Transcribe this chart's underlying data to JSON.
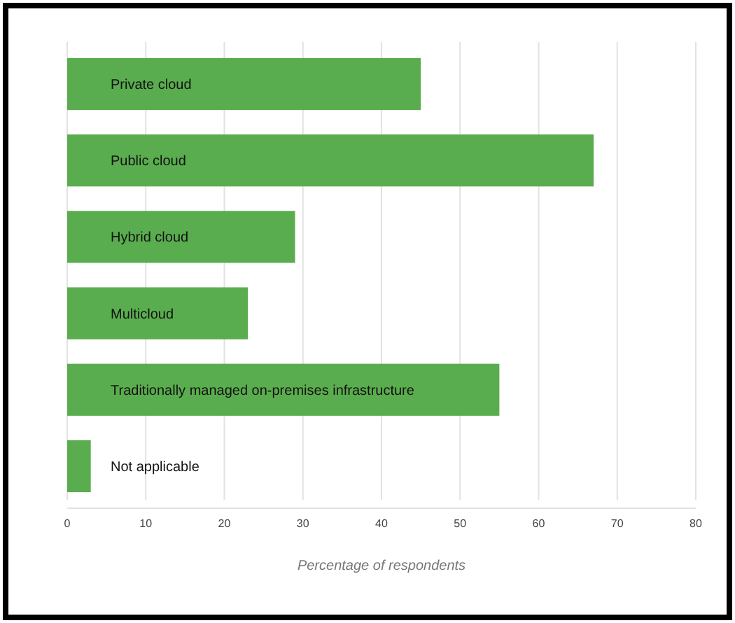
{
  "chart_data": {
    "type": "bar",
    "orientation": "horizontal",
    "categories": [
      "Private cloud",
      "Public cloud",
      "Hybrid cloud",
      "Multicloud",
      "Traditionally managed on-premises infrastructure",
      "Not applicable"
    ],
    "values": [
      45,
      67,
      29,
      23,
      55,
      3
    ],
    "color": "#5aad4e",
    "xlim": [
      0,
      80
    ],
    "xticks": [
      0,
      10,
      20,
      30,
      40,
      50,
      60,
      70,
      80
    ],
    "xlabel": "Percentage of respondents",
    "grid": "x"
  }
}
